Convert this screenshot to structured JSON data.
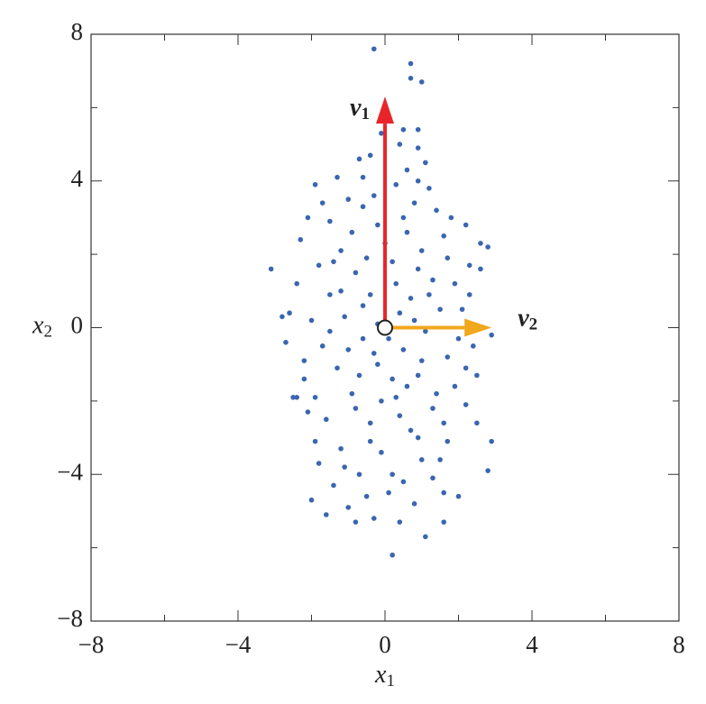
{
  "chart_data": {
    "type": "scatter",
    "xlabel": {
      "text": "x",
      "sub": "1"
    },
    "ylabel": {
      "text": "x",
      "sub": "2"
    },
    "xlim": [
      -8,
      8
    ],
    "ylim": [
      -8,
      8
    ],
    "xticks": [
      {
        "value": -8,
        "label": "−8"
      },
      {
        "value": -4,
        "label": "−4"
      },
      0,
      4,
      8
    ],
    "yticks": [
      {
        "value": -8,
        "label": "−8"
      },
      {
        "value": -4,
        "label": "−4"
      },
      0,
      4,
      8
    ],
    "minor_ticks": [
      -6,
      -2,
      2,
      6
    ],
    "color": "#3a66b0",
    "x": [
      -0.3,
      0.7,
      0.7,
      1.0,
      0.9,
      0.5,
      -0.1,
      0.4,
      0.9,
      -0.4,
      -0.7,
      1.1,
      -1.9,
      2.2,
      2.6,
      2.8,
      2.3,
      2.6,
      -2.1,
      -3.1,
      -2.4,
      -2.6,
      -2.8,
      -2.7,
      -2.4,
      -2.1,
      -1.9,
      -2.0,
      -1.6,
      -0.8,
      -0.3,
      0.2,
      0.4,
      1.1,
      1.6,
      2.0,
      1.6,
      2.8,
      2.9,
      2.5,
      2.2,
      2.5,
      2.4,
      2.9,
      2.1,
      1.9,
      1.6,
      1.4,
      1.2,
      -1.3,
      -1.0,
      -1.5,
      -0.6,
      0.3,
      0.8,
      -0.2,
      0.6,
      1.0,
      -1.2,
      -1.8,
      -0.8,
      0.2,
      1.3,
      -1.5,
      -0.4,
      0.7,
      1.5,
      -2.0,
      -1.1,
      0.4,
      1.1,
      -1.7,
      -0.6,
      0.5,
      1.7,
      -1.3,
      -0.2,
      0.9,
      1.9,
      -2.2,
      -0.9,
      0.3,
      1.3,
      -1.6,
      -0.4,
      0.7,
      1.7,
      -1.2,
      -0.1,
      1.0,
      -0.7,
      0.5,
      -1.4,
      1.3,
      -0.5,
      0.8,
      -1.0,
      0.1,
      -0.2,
      0.1,
      -0.5,
      0.9,
      -1.0,
      0.2,
      1.4,
      -0.8,
      0.0,
      -0.3,
      0.6,
      -1.7,
      1.8,
      -2.3,
      2.0,
      -1.4,
      1.2,
      -0.7,
      0.4,
      -1.9,
      1.6,
      -1.1,
      0.9,
      -0.4,
      0.2,
      -2.5,
      2.3,
      -0.9,
      0.5,
      -0.1,
      1.0,
      -1.5,
      0.8,
      -0.6,
      0.3,
      -1.2,
      1.7,
      -2.2,
      2.2,
      -0.3,
      0.6,
      -1.8,
      1.5,
      -0.6,
      0.9
    ],
    "values": [
      7.6,
      7.2,
      6.8,
      6.7,
      5.4,
      5.4,
      5.3,
      5.0,
      4.9,
      4.7,
      4.6,
      4.5,
      3.9,
      2.8,
      2.3,
      2.2,
      1.7,
      1.6,
      3.0,
      1.6,
      1.2,
      0.4,
      0.3,
      -0.4,
      -1.9,
      -2.3,
      -3.1,
      -4.7,
      -5.1,
      -5.3,
      -5.2,
      -6.2,
      -5.3,
      -5.7,
      -5.3,
      -4.6,
      -4.5,
      -3.9,
      -3.1,
      -2.6,
      -2.1,
      -1.3,
      -0.5,
      -0.2,
      0.5,
      1.2,
      2.5,
      3.2,
      3.8,
      4.1,
      3.5,
      2.9,
      3.3,
      3.9,
      3.4,
      2.8,
      2.6,
      2.1,
      2.1,
      1.7,
      1.5,
      1.8,
      1.3,
      0.9,
      0.9,
      0.8,
      0.5,
      0.2,
      0.3,
      0.4,
      -0.1,
      -0.5,
      -0.3,
      -0.6,
      -0.8,
      -1.1,
      -1.0,
      -1.3,
      -1.6,
      -1.4,
      -1.8,
      -1.9,
      -2.2,
      -2.5,
      -2.6,
      -2.8,
      -3.1,
      -3.3,
      -3.4,
      -3.6,
      -4.0,
      -4.2,
      -4.3,
      -4.1,
      -4.6,
      -4.8,
      -4.9,
      -4.5,
      0.1,
      -0.3,
      1.9,
      1.6,
      -0.6,
      -1.4,
      -1.8,
      -2.2,
      2.3,
      3.6,
      4.3,
      3.4,
      3.0,
      2.4,
      -0.3,
      1.8,
      0.9,
      -1.3,
      -2.4,
      -1.9,
      -2.6,
      -3.8,
      -3.0,
      -3.1,
      -4.0,
      -1.9,
      0.9,
      2.6,
      3.0,
      -2.0,
      -0.9,
      -0.1,
      0.2,
      0.6,
      1.2,
      1.0,
      1.9,
      -0.9,
      -1.1,
      -0.7,
      -1.6,
      -3.7,
      -3.6,
      4.1,
      4.0
    ],
    "origin": [
      0,
      0
    ],
    "vectors": [
      {
        "label": "v",
        "sub": "1",
        "color": "#e8262a",
        "x": 0,
        "y": 6.3
      },
      {
        "label": "v",
        "sub": "2",
        "color": "#f0a81c",
        "x": 2.9,
        "y": 0
      }
    ]
  }
}
